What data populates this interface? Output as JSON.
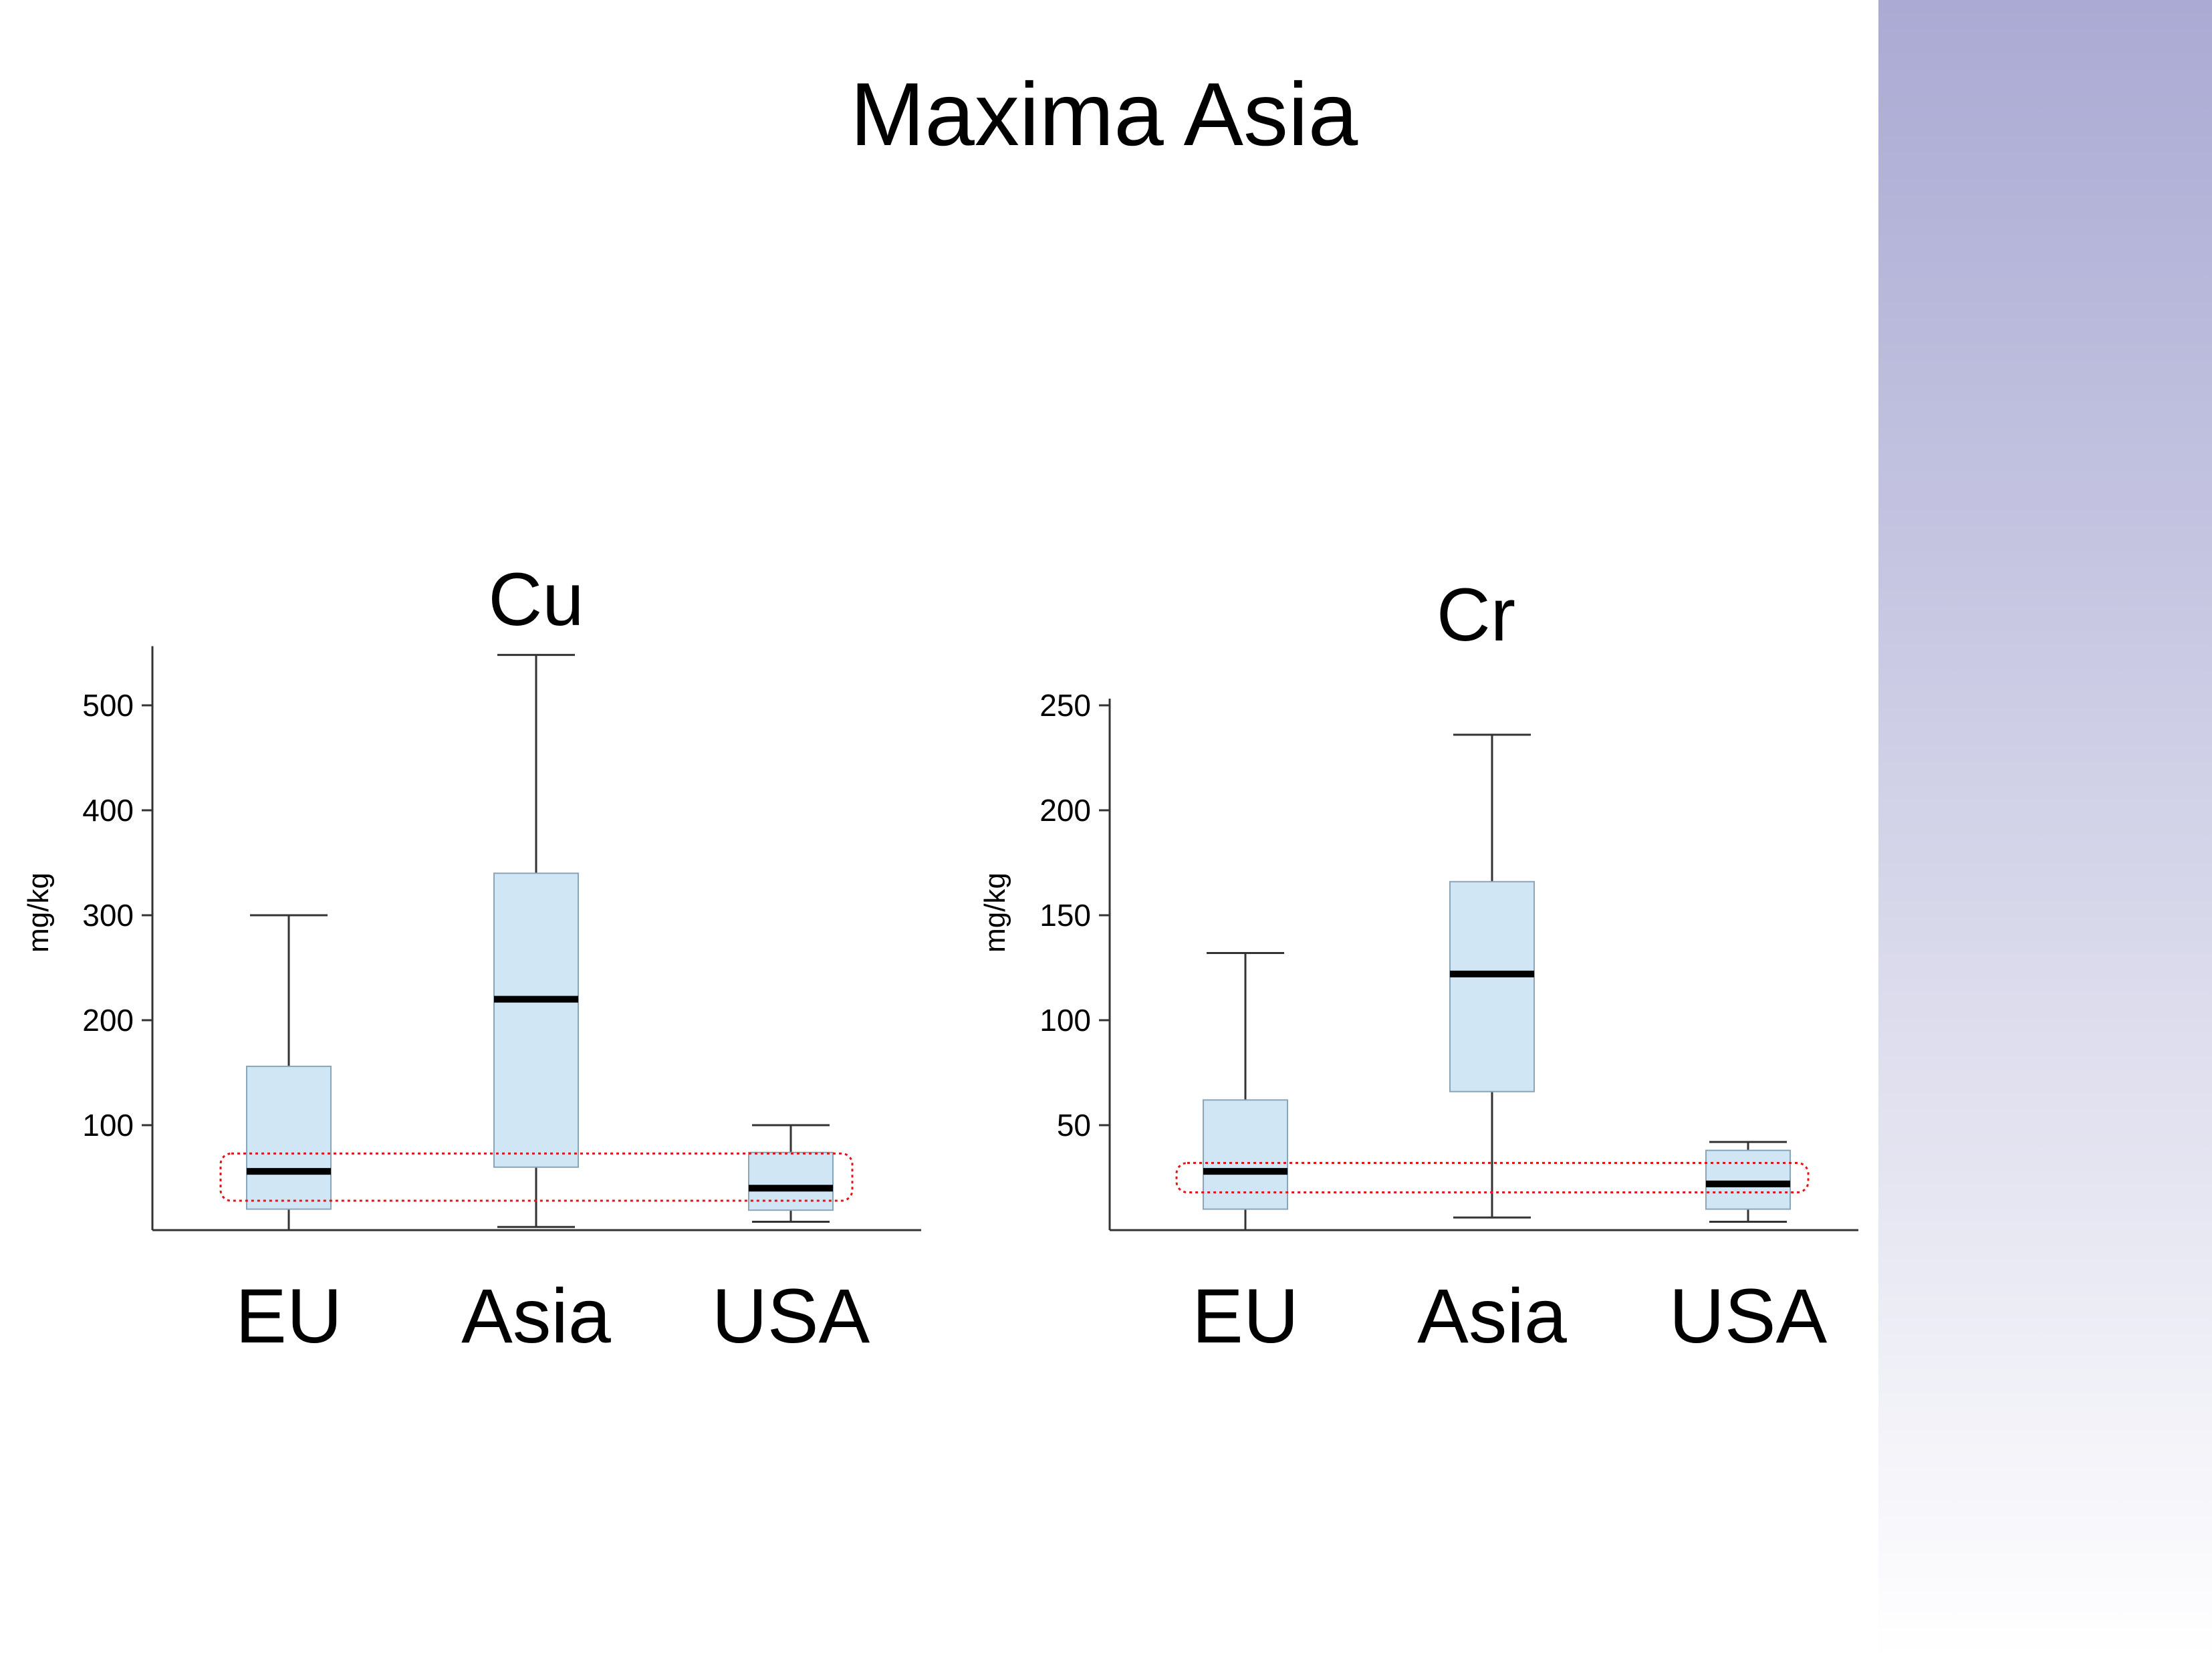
{
  "slide": {
    "title": "Maxima Asia",
    "band_color_top": "#aaaad4",
    "band_color_bottom": "#ffffff"
  },
  "colors": {
    "box_fill": "#d0e6f4",
    "box_stroke": "#8aa4b8",
    "median": "#000000",
    "axis": "#333333",
    "highlight": "#e0161b"
  },
  "chart_data": [
    {
      "type": "box",
      "title": "Cu",
      "ylabel": "mg/kg",
      "categories": [
        "EU",
        "Asia",
        "USA"
      ],
      "yticks": [
        100,
        200,
        300,
        400,
        500
      ],
      "ytick_labels": [
        "100",
        "200",
        "300",
        "400",
        "500"
      ],
      "ylim": [
        0,
        550
      ],
      "series": [
        {
          "category": "EU",
          "min": 0,
          "q1": 20,
          "median": 56,
          "q3": 156,
          "max": 300
        },
        {
          "category": "Asia",
          "min": 3,
          "q1": 60,
          "median": 220,
          "q3": 340,
          "max": 548
        },
        {
          "category": "USA",
          "min": 8,
          "q1": 19,
          "median": 40,
          "q3": 74,
          "max": 100
        }
      ],
      "highlight_range": [
        28,
        73
      ]
    },
    {
      "type": "box",
      "title": "Cr",
      "ylabel": "mg/kg",
      "categories": [
        "EU",
        "Asia",
        "USA"
      ],
      "yticks": [
        50,
        100,
        150,
        200,
        250
      ],
      "ytick_labels": [
        "50",
        "100",
        "150",
        "200",
        "250"
      ],
      "ylim": [
        0,
        250
      ],
      "series": [
        {
          "category": "EU",
          "min": 0,
          "q1": 10,
          "median": 28,
          "q3": 62,
          "max": 132
        },
        {
          "category": "Asia",
          "min": 6,
          "q1": 66,
          "median": 122,
          "q3": 166,
          "max": 236
        },
        {
          "category": "USA",
          "min": 4,
          "q1": 10,
          "median": 22,
          "q3": 38,
          "max": 42
        }
      ],
      "highlight_range": [
        18,
        32
      ]
    }
  ]
}
